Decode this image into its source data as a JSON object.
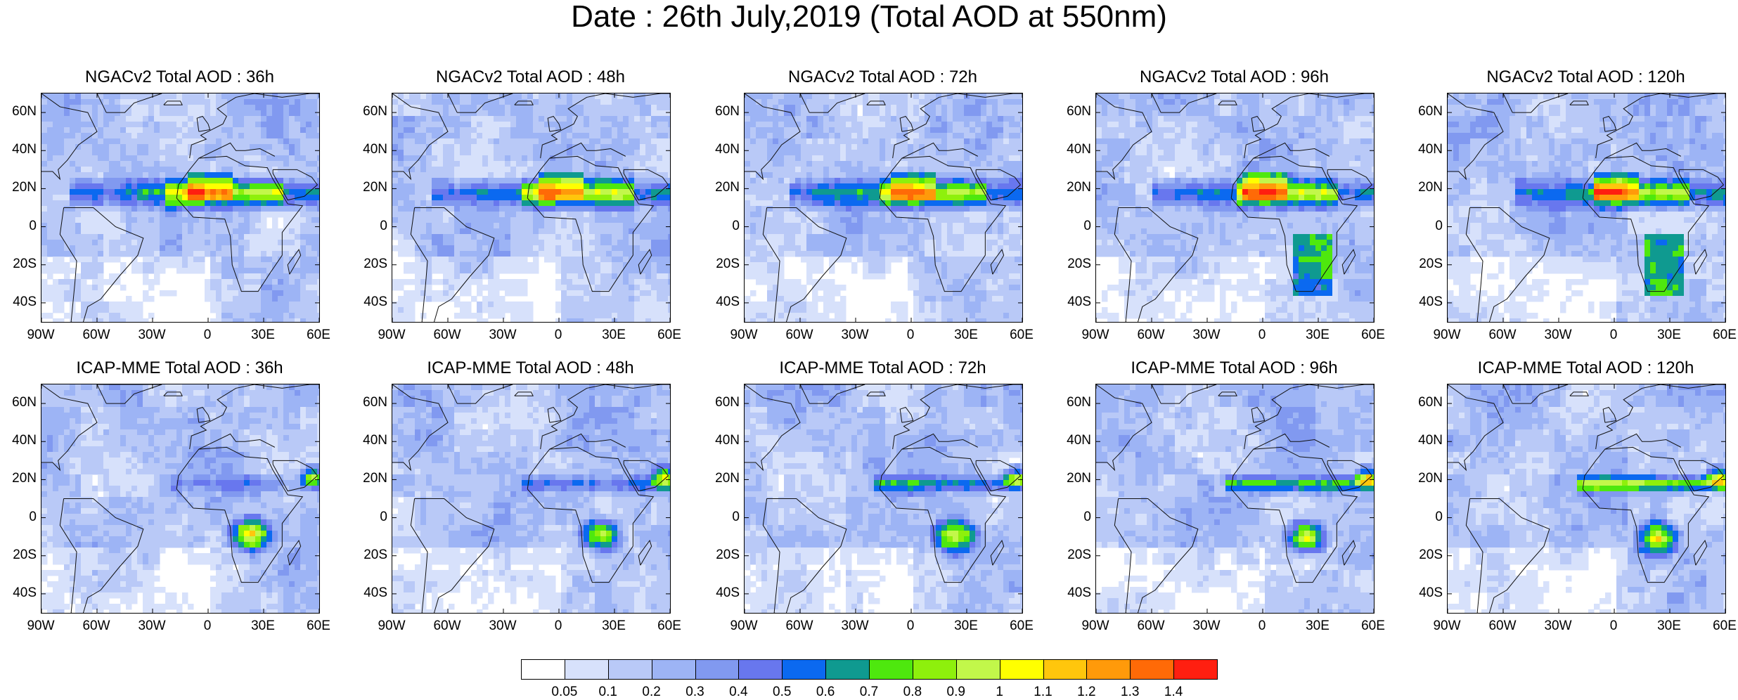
{
  "title": "Date : 26th July,2019 (Total AOD at 550nm)",
  "panels": [
    {
      "title": "NGACv2 Total AOD : 36h"
    },
    {
      "title": "NGACv2 Total AOD : 48h"
    },
    {
      "title": "NGACv2 Total AOD : 72h"
    },
    {
      "title": "NGACv2 Total AOD : 96h"
    },
    {
      "title": "NGACv2 Total AOD : 120h"
    },
    {
      "title": "ICAP-MME Total AOD : 36h"
    },
    {
      "title": "ICAP-MME Total AOD : 48h"
    },
    {
      "title": "ICAP-MME Total AOD : 72h"
    },
    {
      "title": "ICAP-MME Total AOD : 96h"
    },
    {
      "title": "ICAP-MME Total AOD : 120h"
    }
  ],
  "lat_ticks": [
    "60N",
    "40N",
    "20N",
    "0",
    "20S",
    "40S"
  ],
  "lon_ticks": [
    "90W",
    "60W",
    "30W",
    "0",
    "30E",
    "60E"
  ],
  "colorbar": {
    "labels": [
      "0.05",
      "0.1",
      "0.2",
      "0.3",
      "0.4",
      "0.5",
      "0.6",
      "0.7",
      "0.8",
      "0.9",
      "1",
      "1.1",
      "1.2",
      "1.3",
      "1.4"
    ],
    "colors": [
      "#ffffff",
      "#d7e1fb",
      "#b9c9f7",
      "#9db4f5",
      "#8199f0",
      "#6877ee",
      "#0b69f0",
      "#0f9a90",
      "#4ee80e",
      "#8ef00c",
      "#c2f74a",
      "#ffff00",
      "#ffc60c",
      "#ff9a0a",
      "#ff6a07",
      "#ff1f10"
    ]
  }
}
